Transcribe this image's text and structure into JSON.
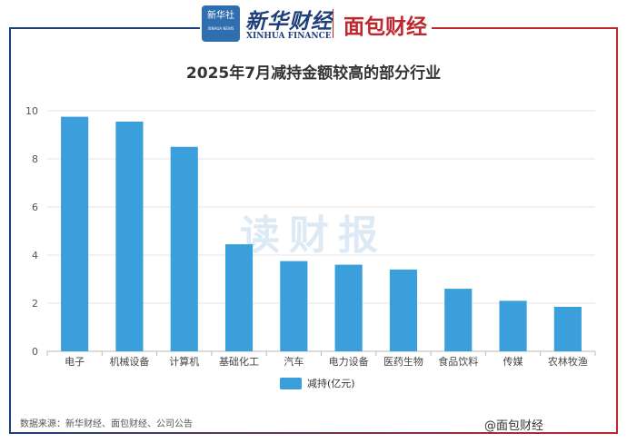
{
  "header": {
    "logo_text": "新华社",
    "logo_sub": "XINHUA NEWS",
    "brand1": "新华财经",
    "brand1_en": "XINHUA FINANCE",
    "brand2": "面包财经"
  },
  "colors": {
    "bar": "#3a9fda",
    "left_frame": "#1f3f7a",
    "right_frame": "#c0272d"
  },
  "watermark": "读财报",
  "chart_data": {
    "type": "bar",
    "title": "2025年7月减持金额较高的部分行业",
    "categories": [
      "电子",
      "机械设备",
      "计算机",
      "基础化工",
      "汽车",
      "电力设备",
      "医药生物",
      "食品饮料",
      "传媒",
      "农林牧渔"
    ],
    "series": [
      {
        "name": "减持(亿元)",
        "values": [
          9.75,
          9.55,
          8.5,
          4.45,
          3.75,
          3.6,
          3.4,
          2.6,
          2.1,
          1.85
        ]
      }
    ],
    "yticks": [
      0,
      2,
      4,
      6,
      8,
      10
    ],
    "ylim": [
      0,
      10
    ],
    "grid": true,
    "legend": "bottom-center"
  },
  "footer": {
    "source": "数据来源：新华财经、面包财经、公司公告",
    "attribution": "@面包财经"
  }
}
